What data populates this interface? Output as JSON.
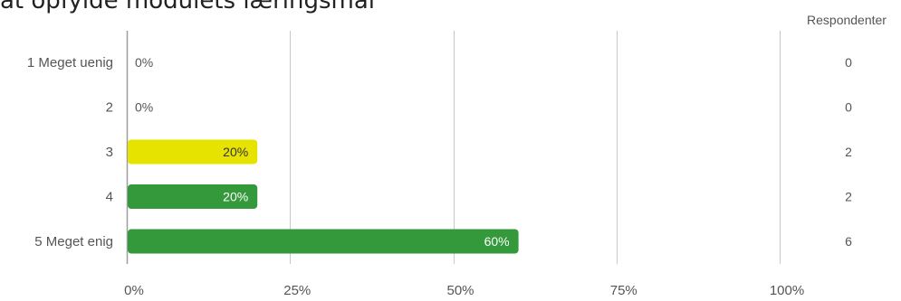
{
  "question": {
    "title": "at opfylde modulets læringsmål"
  },
  "chart_data": {
    "type": "bar",
    "orientation": "horizontal",
    "respondents_header": "Respondenter",
    "categories": [
      "1 Meget uenig",
      "2",
      "3",
      "4",
      "5 Meget enig"
    ],
    "values": [
      0,
      0,
      20,
      20,
      60
    ],
    "value_labels": [
      "0%",
      "0%",
      "20%",
      "20%",
      "60%"
    ],
    "respondents": [
      "0",
      "0",
      "2",
      "2",
      "6"
    ],
    "bar_colors": [
      "#33993b",
      "#33993b",
      "#e6e300",
      "#33993b",
      "#33993b"
    ],
    "xlim": [
      0,
      100
    ],
    "xticks": [
      0,
      25,
      50,
      75,
      100
    ],
    "xtick_labels": [
      "0%",
      "25%",
      "50%",
      "75%",
      "100%"
    ],
    "grid": true,
    "colors": {
      "green": "#33993b",
      "yellow": "#e6e300",
      "gridline": "#c8c8c8",
      "axis": "#9e9e9e",
      "text": "#555555"
    }
  }
}
